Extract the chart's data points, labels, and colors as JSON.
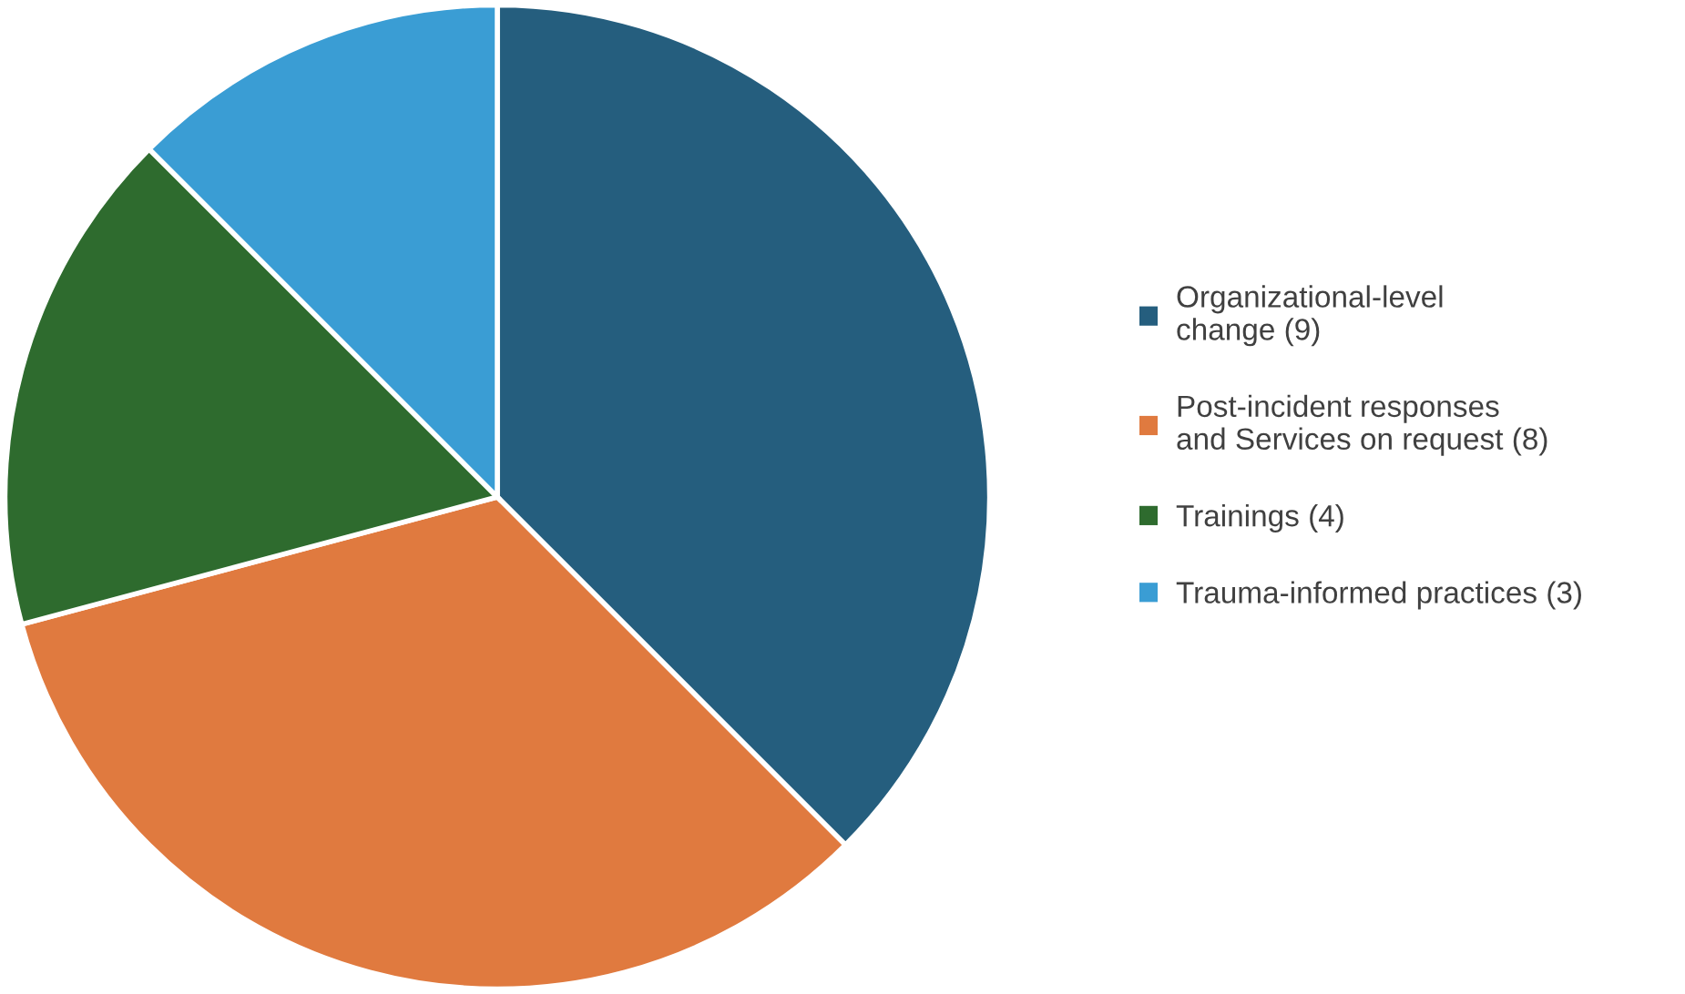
{
  "chart_data": {
    "type": "pie",
    "categories": [
      "Organizational-level change (9)",
      "Post-incident responses and Services on request (8)",
      "Trainings (4)",
      "Trauma-informed practices (3)"
    ],
    "values": [
      9,
      8,
      4,
      3
    ],
    "colors": [
      "#255e7e",
      "#e07a3f",
      "#2e6b2e",
      "#3a9dd4"
    ],
    "legend": "right"
  }
}
